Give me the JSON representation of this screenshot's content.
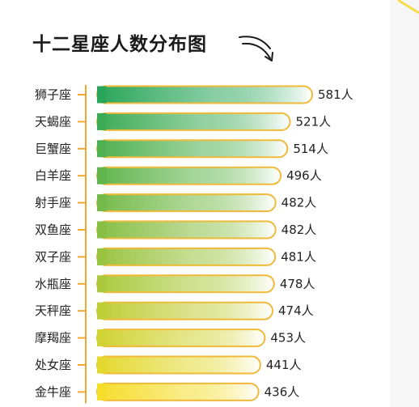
{
  "title": "十二星座人数分布图",
  "colors": {
    "accent_orange": "#f0a830",
    "bar_outline": "#f0b93a",
    "gradient_top": "#2aa65a",
    "gradient_bottom": "#f5dd2a"
  },
  "icons": [
    "curved-arrow-icon"
  ],
  "chart_data": {
    "type": "bar",
    "orientation": "horizontal",
    "title": "十二星座人数分布图",
    "unit_suffix": "人",
    "categories": [
      "狮子座",
      "天蝎座",
      "巨蟹座",
      "白羊座",
      "射手座",
      "双鱼座",
      "双子座",
      "水瓶座",
      "天秤座",
      "摩羯座",
      "处女座",
      "金牛座"
    ],
    "values": [
      581,
      521,
      514,
      496,
      482,
      482,
      481,
      478,
      474,
      453,
      441,
      436
    ],
    "value_labels": [
      "581人",
      "521人",
      "514人",
      "496人",
      "482人",
      "482人",
      "481人",
      "478人",
      "474人",
      "453人",
      "441人",
      "436人"
    ],
    "xlim": [
      0,
      581
    ],
    "grid": false,
    "legend": "none"
  }
}
